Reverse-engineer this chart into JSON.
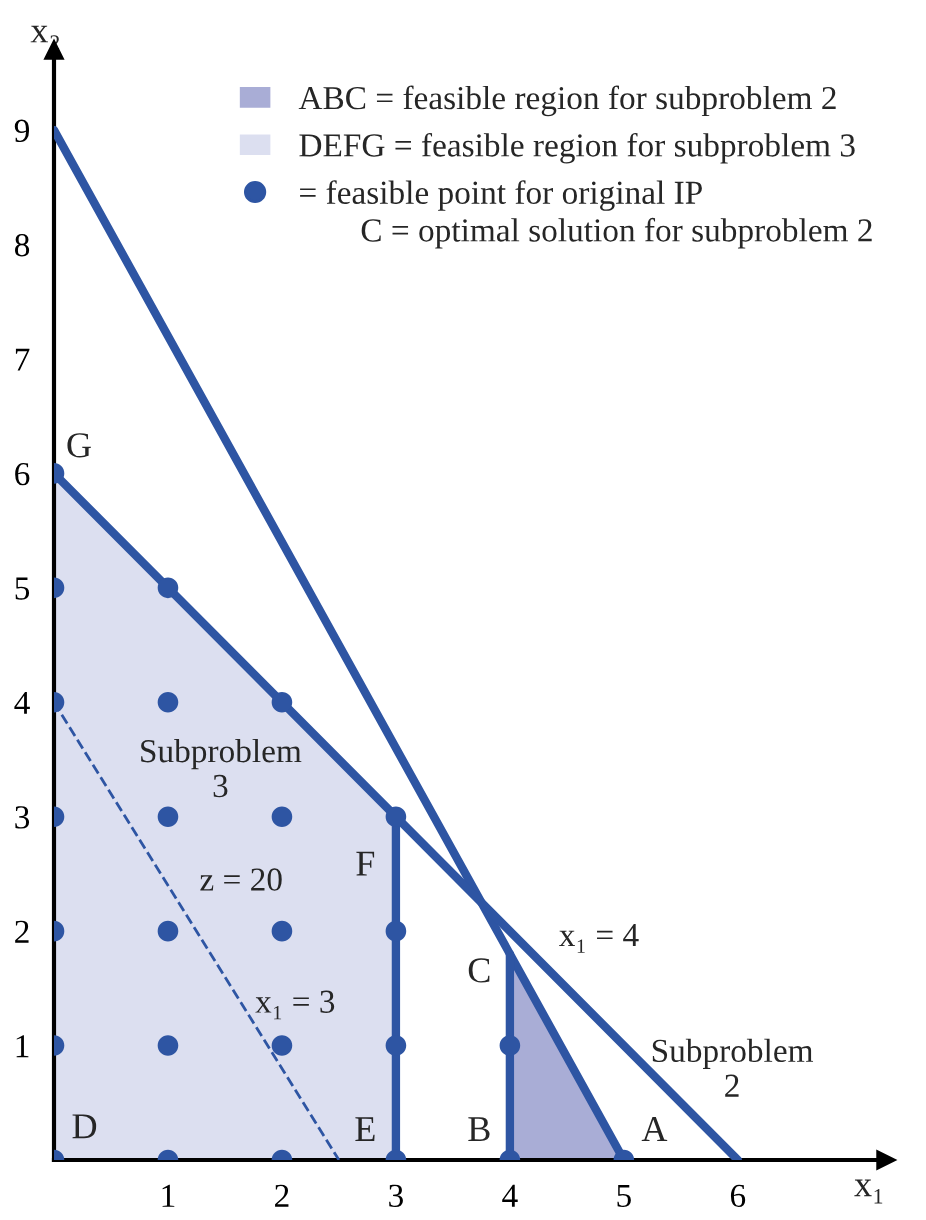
{
  "chart_data": {
    "type": "scatter",
    "xlabel": "x₁",
    "ylabel": "x₂",
    "xlim": [
      0,
      7.3
    ],
    "ylim": [
      0,
      9.7
    ],
    "xticks": [
      1,
      2,
      3,
      4,
      5,
      6
    ],
    "yticks": [
      1,
      2,
      3,
      4,
      5,
      6,
      7,
      8,
      9
    ],
    "grid": false,
    "legend": "top right",
    "series": [
      {
        "type": "area",
        "name": "ABC = feasible region for subproblem 2",
        "color": "#a9add6",
        "x": [
          4,
          5
        ],
        "values": [
          1.8,
          0
        ]
      },
      {
        "type": "area",
        "name": "DEFG = feasible region for subproblem 3",
        "color": "#dcdff0",
        "x": [
          0,
          3
        ],
        "values": [
          6,
          3
        ]
      },
      {
        "type": "line",
        "color": "#2e55a3",
        "x": [
          0,
          5
        ],
        "values": [
          9,
          0
        ]
      },
      {
        "type": "line",
        "color": "#2e55a3",
        "x": [
          0,
          6
        ],
        "values": [
          6,
          0
        ]
      },
      {
        "type": "line",
        "color": "#2e55a3",
        "line_style": "dashed",
        "x": [
          0,
          2.5
        ],
        "values": [
          4,
          0
        ]
      },
      {
        "type": "line",
        "color": "#2e55a3",
        "x": [
          3,
          3
        ],
        "values": [
          0,
          3
        ]
      },
      {
        "type": "line",
        "color": "#2e55a3",
        "x": [
          4,
          4
        ],
        "values": [
          0,
          1.8
        ]
      },
      {
        "name": "= feasible point for original IP",
        "marker": "circle",
        "color": "#2e55a3",
        "x": [
          0,
          0,
          0,
          0,
          0,
          0,
          0,
          1,
          1,
          1,
          1,
          1,
          1,
          2,
          2,
          2,
          2,
          2,
          3,
          3,
          3,
          3,
          4,
          4,
          5
        ],
        "values": [
          0,
          1,
          2,
          3,
          4,
          5,
          6,
          0,
          1,
          2,
          3,
          4,
          5,
          0,
          1,
          2,
          3,
          4,
          0,
          1,
          2,
          3,
          0,
          1,
          0
        ]
      }
    ],
    "annotations": [
      "C = optimal solution for subproblem 2",
      {
        "text": "G",
        "x": 0,
        "y": 6
      },
      {
        "text": "F",
        "x": 3,
        "y": 3
      },
      {
        "text": "E",
        "x": 3,
        "y": 0
      },
      {
        "text": "D",
        "x": 0,
        "y": 0
      },
      {
        "text": "B",
        "x": 4,
        "y": 0
      },
      {
        "text": "A",
        "x": 5,
        "y": 0
      },
      {
        "text": "C",
        "x": 4,
        "y": 1.8
      },
      "Subproblem\n3",
      "z = 20",
      "x₁ = 3",
      "x₁ = 4",
      "Subproblem\n2"
    ]
  }
}
